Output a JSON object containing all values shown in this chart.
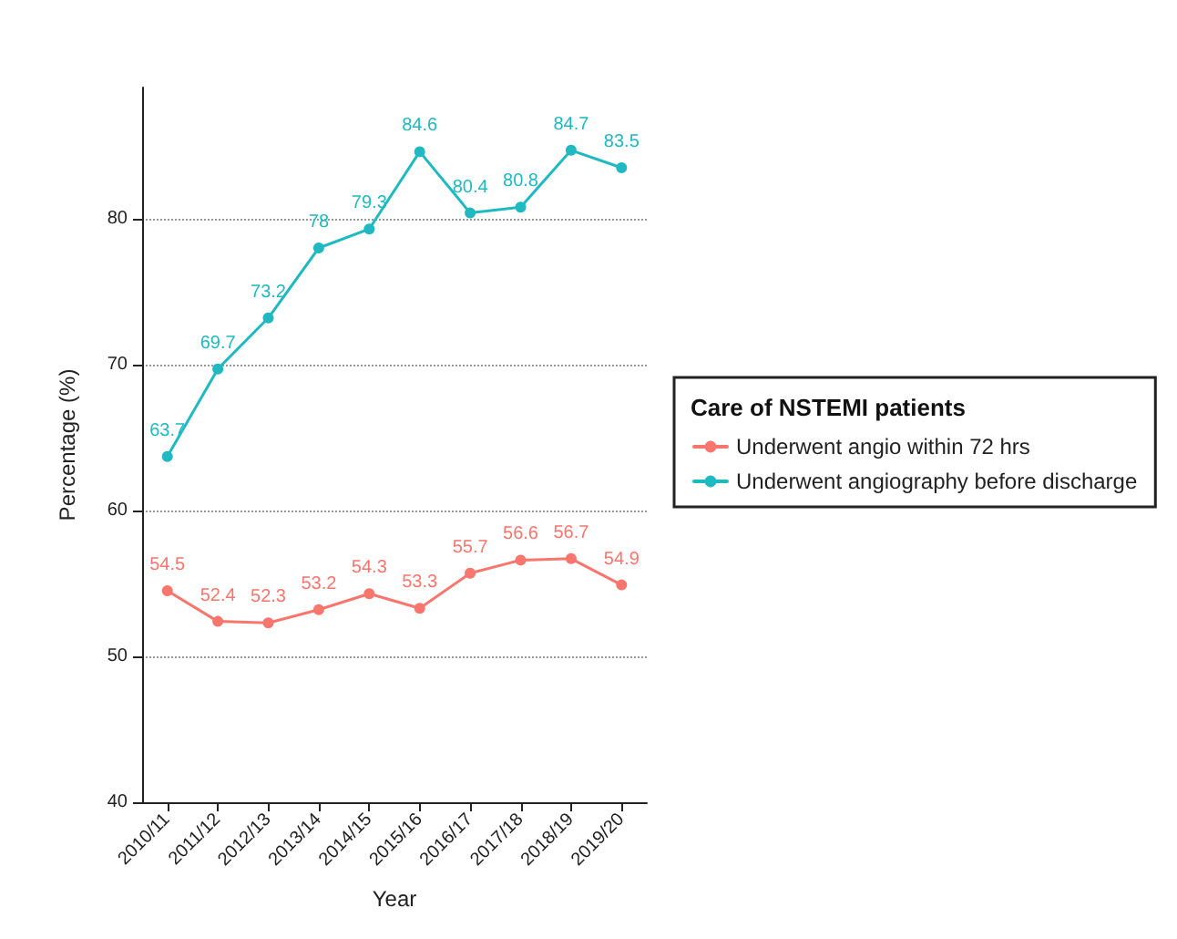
{
  "chart_data": {
    "type": "line",
    "xlabel": "Year",
    "ylabel": "Percentage (%)",
    "legend_title": "Care of NSTEMI patients",
    "categories": [
      "2010/11",
      "2011/12",
      "2012/13",
      "2013/14",
      "2014/15",
      "2015/16",
      "2016/17",
      "2017/18",
      "2018/19",
      "2019/20"
    ],
    "series": [
      {
        "name": "Underwent angio within 72 hrs",
        "color": "#f8766d",
        "values": [
          54.5,
          52.4,
          52.3,
          53.2,
          54.3,
          53.3,
          55.7,
          56.6,
          56.7,
          54.9
        ]
      },
      {
        "name": "Underwent angiography before discharge",
        "color": "#20b9c1",
        "values": [
          63.7,
          69.7,
          73.2,
          78,
          79.3,
          84.6,
          80.4,
          80.8,
          84.7,
          83.5
        ]
      }
    ],
    "ylim": [
      40,
      89
    ],
    "yticks": [
      40,
      50,
      60,
      70,
      80
    ],
    "grid": "y",
    "legend": "right",
    "marker": "circle",
    "line_style": "solid",
    "data_labels": true
  }
}
